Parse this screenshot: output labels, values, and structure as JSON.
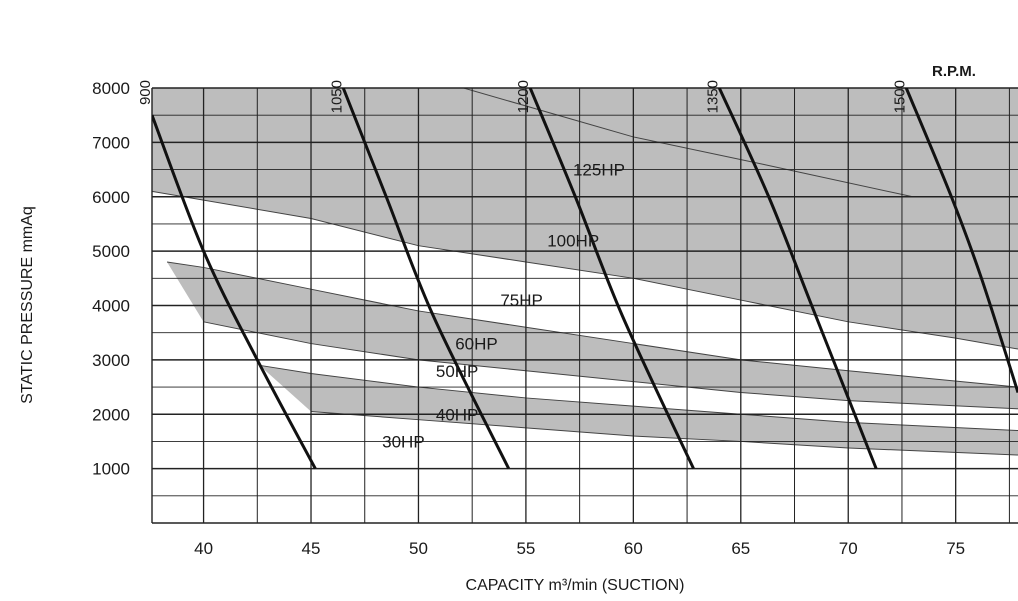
{
  "chart_data": {
    "type": "line",
    "xlabel": "CAPACITY m³/min (SUCTION)",
    "ylabel": "STATIC PRESSURE mmAq",
    "xlim": [
      37.6,
      77.9
    ],
    "ylim": [
      0,
      8000
    ],
    "x_ticks": [
      40,
      45,
      50,
      55,
      60,
      65,
      70,
      75
    ],
    "y_ticks": [
      1000,
      2000,
      3000,
      4000,
      5000,
      6000,
      7000,
      8000
    ],
    "grid": true,
    "rpm_unit": "R.P.M.",
    "rpm_curves": [
      {
        "name": "900",
        "points": [
          [
            37.6,
            7500
          ],
          [
            40,
            5000
          ],
          [
            42.5,
            3000
          ],
          [
            45.2,
            1000
          ]
        ]
      },
      {
        "name": "1050",
        "points": [
          [
            46.5,
            8000
          ],
          [
            48.5,
            6000
          ],
          [
            50.7,
            3800
          ],
          [
            54.2,
            1000
          ]
        ]
      },
      {
        "name": "1200",
        "points": [
          [
            55.2,
            8000
          ],
          [
            57.3,
            6000
          ],
          [
            59.5,
            3800
          ],
          [
            62.8,
            1000
          ]
        ]
      },
      {
        "name": "1350",
        "points": [
          [
            64.0,
            8000
          ],
          [
            66.3,
            6000
          ],
          [
            68.3,
            4000
          ],
          [
            71.3,
            1000
          ]
        ]
      },
      {
        "name": "1500",
        "points": [
          [
            72.7,
            8000
          ],
          [
            74.8,
            6000
          ],
          [
            76.2,
            4500
          ],
          [
            77.9,
            2400
          ]
        ]
      }
    ],
    "power_bands": [
      {
        "name": "125HP",
        "label_at": [
          58.4,
          6500
        ],
        "upper": [
          [
            52.1,
            8000
          ],
          [
            60,
            7100
          ],
          [
            66,
            6600
          ],
          [
            73,
            6000
          ]
        ],
        "lower": null
      },
      {
        "name": "100HP",
        "label_at": [
          57.2,
          5200
        ],
        "upper": [
          [
            37.6,
            8000
          ],
          [
            77.9,
            8000
          ]
        ],
        "lower": [
          [
            37.6,
            6100
          ],
          [
            45,
            5600
          ],
          [
            50,
            5100
          ],
          [
            55,
            4800
          ],
          [
            60,
            4500
          ],
          [
            65,
            4100
          ],
          [
            70,
            3700
          ],
          [
            75,
            3400
          ],
          [
            77.9,
            3200
          ]
        ]
      },
      {
        "name": "75HP",
        "label_at": [
          54.8,
          4100
        ],
        "upper": null,
        "lower": null
      },
      {
        "name": "60HP",
        "label_at": [
          52.7,
          3300
        ],
        "upper": [
          [
            38.3,
            4800
          ],
          [
            40,
            4700
          ],
          [
            45,
            4300
          ],
          [
            50,
            3900
          ],
          [
            55,
            3600
          ],
          [
            60,
            3300
          ],
          [
            65,
            3000
          ],
          [
            70,
            2800
          ],
          [
            77.9,
            2500
          ]
        ],
        "lower": [
          [
            40,
            3700
          ],
          [
            45,
            3300
          ],
          [
            50,
            3000
          ],
          [
            55,
            2800
          ],
          [
            60,
            2600
          ],
          [
            65,
            2400
          ],
          [
            70,
            2250
          ],
          [
            77.9,
            2100
          ]
        ]
      },
      {
        "name": "50HP",
        "label_at": [
          51.8,
          2800
        ],
        "upper": null,
        "lower": null
      },
      {
        "name": "40HP",
        "label_at": [
          51.8,
          2000
        ],
        "upper": [
          [
            42.6,
            2900
          ],
          [
            45,
            2750
          ],
          [
            50,
            2500
          ],
          [
            55,
            2300
          ],
          [
            60,
            2150
          ],
          [
            65,
            2000
          ],
          [
            70,
            1850
          ],
          [
            77.9,
            1700
          ]
        ],
        "lower": [
          [
            45,
            2050
          ],
          [
            50,
            1900
          ],
          [
            55,
            1750
          ],
          [
            60,
            1600
          ],
          [
            65,
            1500
          ],
          [
            70,
            1380
          ],
          [
            77.9,
            1250
          ]
        ]
      },
      {
        "name": "30HP",
        "label_at": [
          49.3,
          1500
        ],
        "upper": null,
        "lower": null
      }
    ]
  }
}
